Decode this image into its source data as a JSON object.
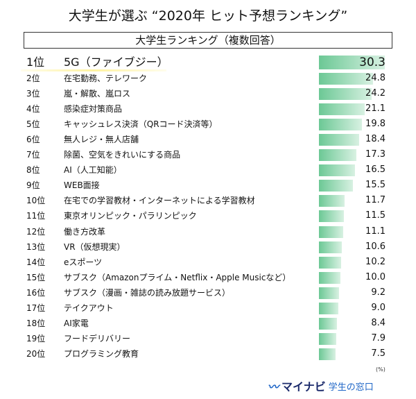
{
  "chart_data": {
    "type": "bar",
    "orientation": "horizontal",
    "title": "大学生が選ぶ “2020年 ヒット予想ランキング”",
    "subtitle": "大学生ランキング（複数回答）",
    "unit": "(%)",
    "bar_color": "#6cc895",
    "items": [
      {
        "rank": "1位",
        "label": "5G（ファイブジー）",
        "value": 30.3
      },
      {
        "rank": "2位",
        "label": "在宅勤務、テレワーク",
        "value": 24.8
      },
      {
        "rank": "3位",
        "label": "嵐・解散、嵐ロス",
        "value": 24.2
      },
      {
        "rank": "4位",
        "label": "感染症対策商品",
        "value": 21.1
      },
      {
        "rank": "5位",
        "label": "キャッシュレス決済（QRコード決済等）",
        "value": 19.8
      },
      {
        "rank": "6位",
        "label": "無人レジ・無人店舗",
        "value": 18.4
      },
      {
        "rank": "7位",
        "label": "除菌、空気をきれいにする商品",
        "value": 17.3
      },
      {
        "rank": "8位",
        "label": "AI（人工知能）",
        "value": 16.5
      },
      {
        "rank": "9位",
        "label": "WEB面接",
        "value": 15.5
      },
      {
        "rank": "10位",
        "label": "在宅での学習教材・インターネットによる学習教材",
        "value": 11.7
      },
      {
        "rank": "11位",
        "label": "東京オリンピック・パラリンピック",
        "value": 11.5
      },
      {
        "rank": "12位",
        "label": "働き方改革",
        "value": 11.1
      },
      {
        "rank": "13位",
        "label": "VR（仮想現実）",
        "value": 10.6
      },
      {
        "rank": "14位",
        "label": "eスポーツ",
        "value": 10.2
      },
      {
        "rank": "15位",
        "label": "サブスク（Amazonプライム・Netflix・Apple Musicなど）",
        "value": 10.0
      },
      {
        "rank": "16位",
        "label": "サブスク（漫画・雑誌の読み放題サービス）",
        "value": 9.2
      },
      {
        "rank": "17位",
        "label": "テイクアウト",
        "value": 9.0
      },
      {
        "rank": "18位",
        "label": "AI家電",
        "value": 8.4
      },
      {
        "rank": "19位",
        "label": "フードデリバリー",
        "value": 7.9
      },
      {
        "rank": "20位",
        "label": "プログラミング教育",
        "value": 7.5
      }
    ]
  },
  "logo": {
    "mark": "W",
    "name": "マイナビ",
    "sub": "学生の窓口"
  }
}
